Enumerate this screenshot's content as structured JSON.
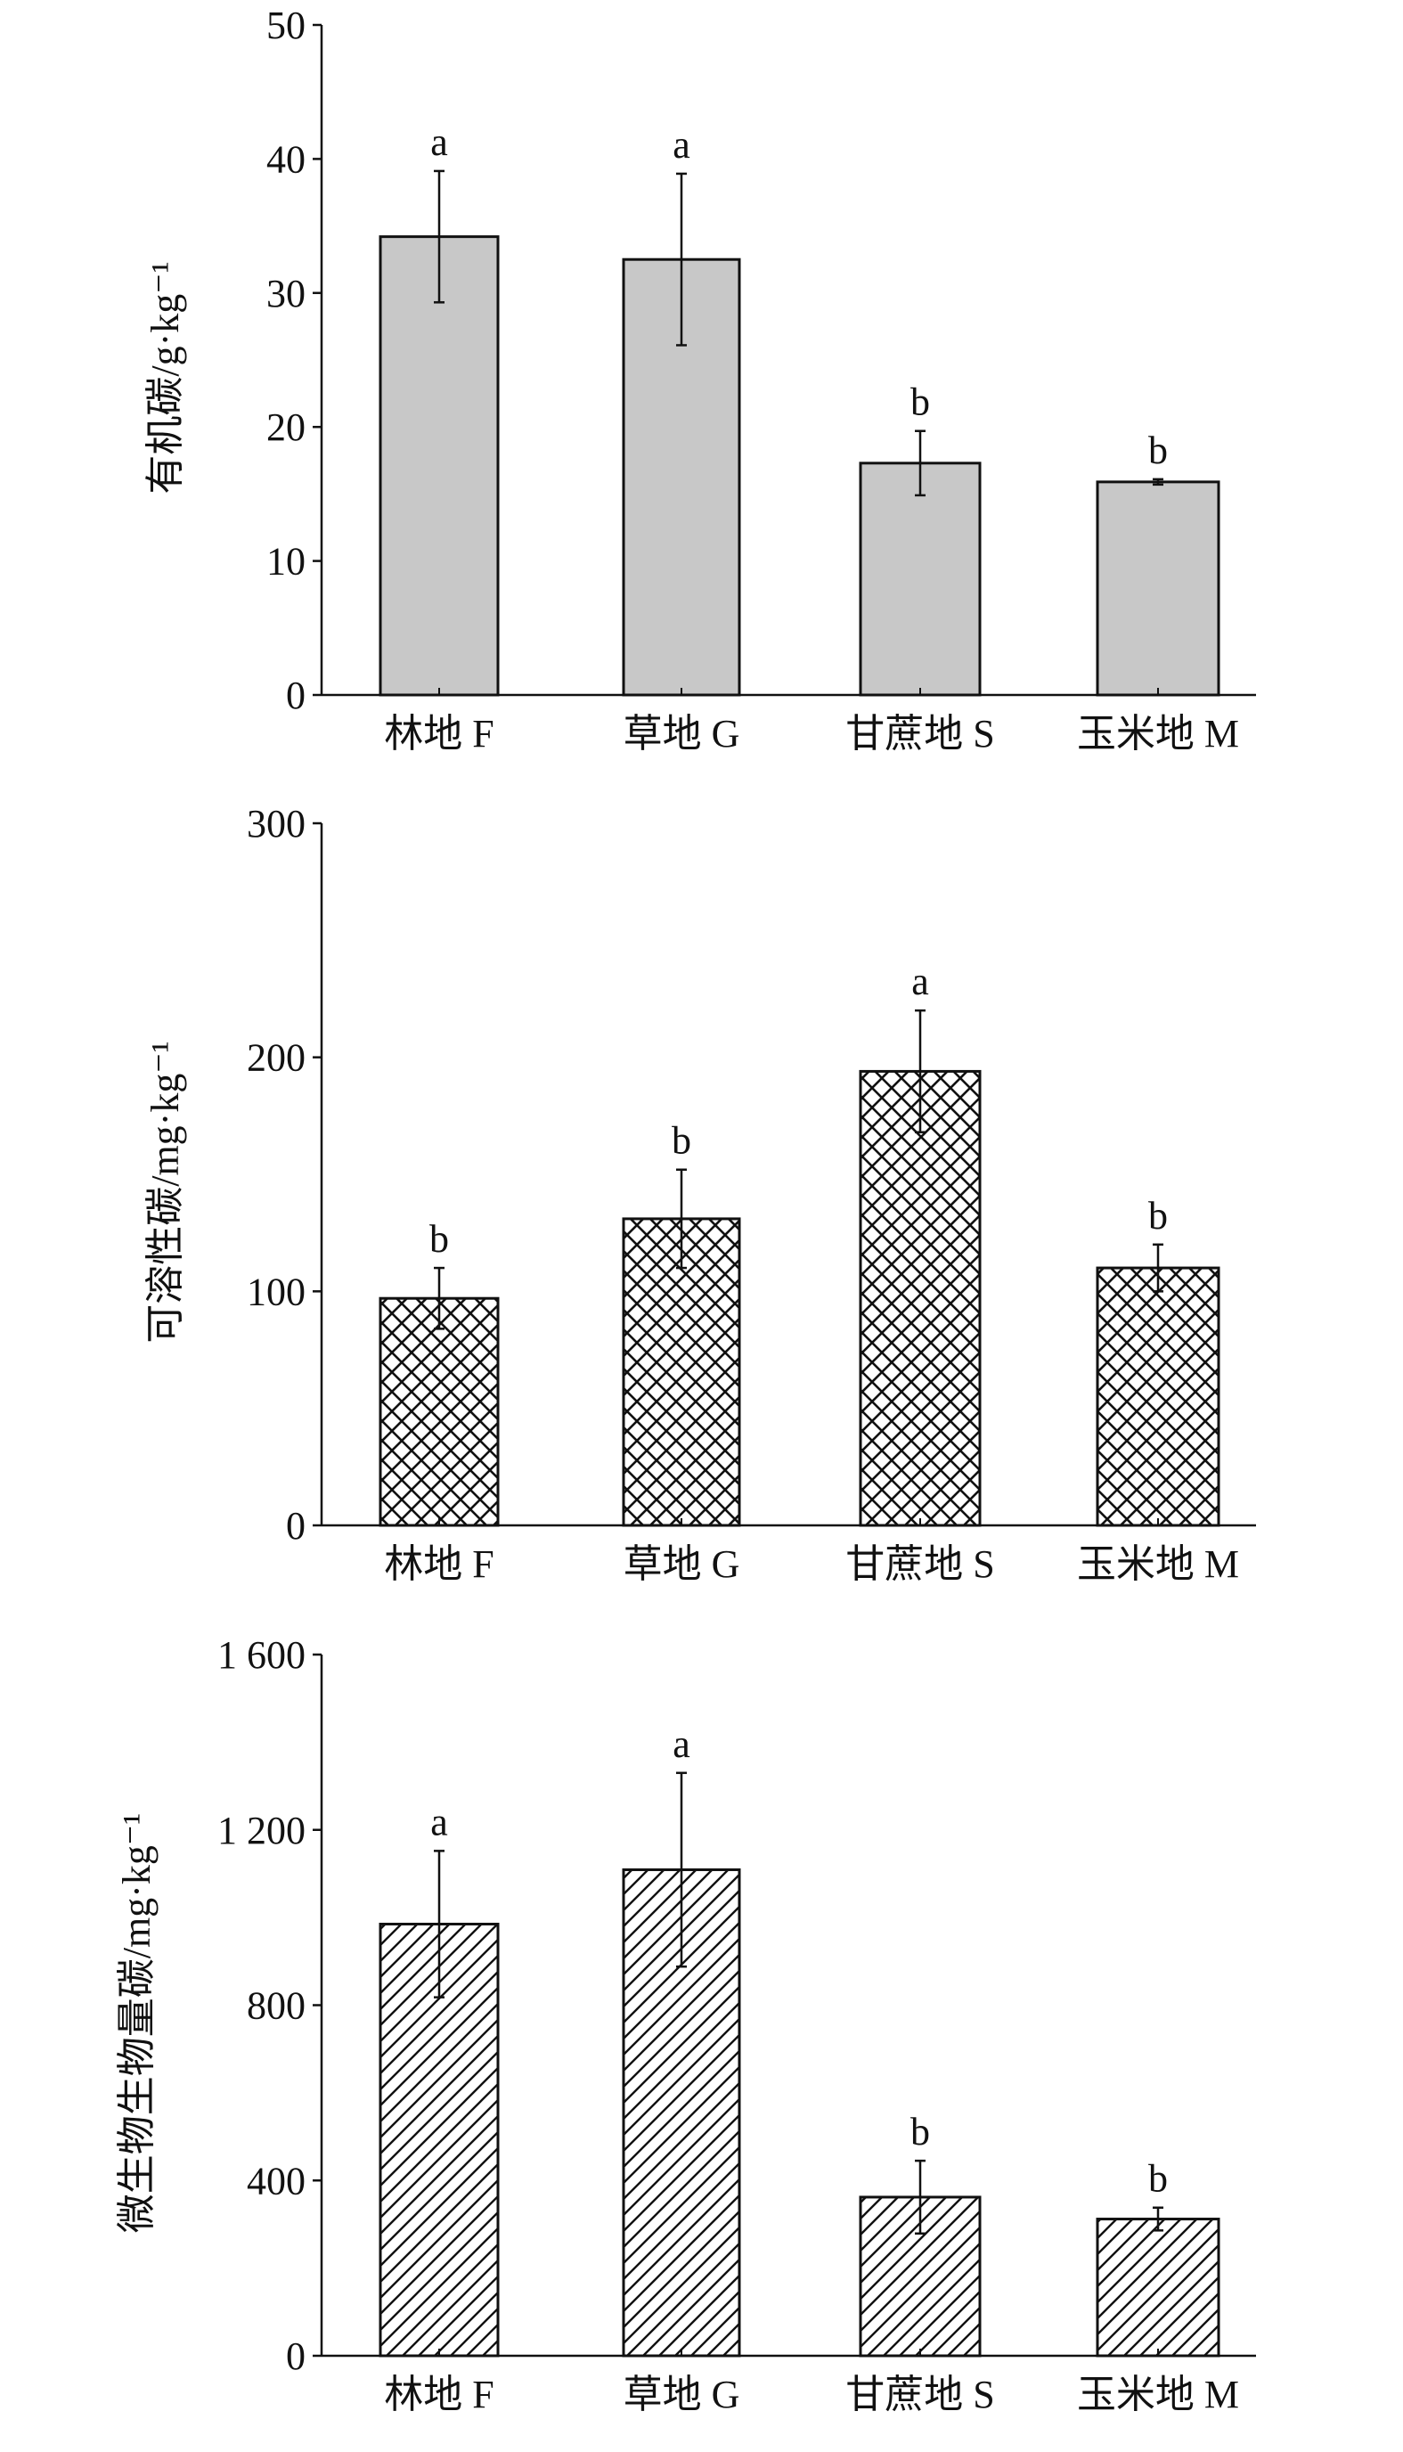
{
  "chart_data": [
    {
      "type": "bar",
      "ylabel": "有机碳/g·kg⁻¹",
      "categories": [
        "林地 F",
        "草地 G",
        "甘蔗地 S",
        "玉米地 M"
      ],
      "values": [
        34.2,
        32.5,
        17.3,
        15.9
      ],
      "errors": [
        4.9,
        6.4,
        2.4,
        0.2
      ],
      "significance": [
        "a",
        "a",
        "b",
        "b"
      ],
      "ylim": [
        0,
        50
      ],
      "yticks": [
        0,
        10,
        20,
        30,
        40,
        50
      ],
      "ytick_labels": [
        "0",
        "10",
        "20",
        "30",
        "40",
        "50"
      ],
      "fill": "gray",
      "fill_color": "#c8c8c8"
    },
    {
      "type": "bar",
      "ylabel": "可溶性碳/mg·kg⁻¹",
      "categories": [
        "林地 F",
        "草地 G",
        "甘蔗地 S",
        "玉米地 M"
      ],
      "values": [
        97,
        131,
        194,
        110
      ],
      "errors": [
        13,
        21,
        26,
        10
      ],
      "significance": [
        "b",
        "b",
        "a",
        "b"
      ],
      "ylim": [
        0,
        300
      ],
      "yticks": [
        0,
        100,
        200,
        300
      ],
      "ytick_labels": [
        "0",
        "100",
        "200",
        "300"
      ],
      "fill": "crosshatch",
      "fill_color": "#ffffff"
    },
    {
      "type": "bar",
      "ylabel": "微生物生物量碳/mg·kg⁻¹",
      "categories": [
        "林地 F",
        "草地 G",
        "甘蔗地 S",
        "玉米地 M"
      ],
      "values": [
        985,
        1109,
        362,
        312
      ],
      "errors": [
        167,
        221,
        83,
        26
      ],
      "significance": [
        "a",
        "a",
        "b",
        "b"
      ],
      "ylim": [
        0,
        1600
      ],
      "yticks": [
        0,
        400,
        800,
        1200,
        1600
      ],
      "ytick_labels": [
        "0",
        "400",
        "800",
        "1 200",
        "1 600"
      ],
      "fill": "diagonal-hatch",
      "fill_color": "#ffffff"
    }
  ]
}
